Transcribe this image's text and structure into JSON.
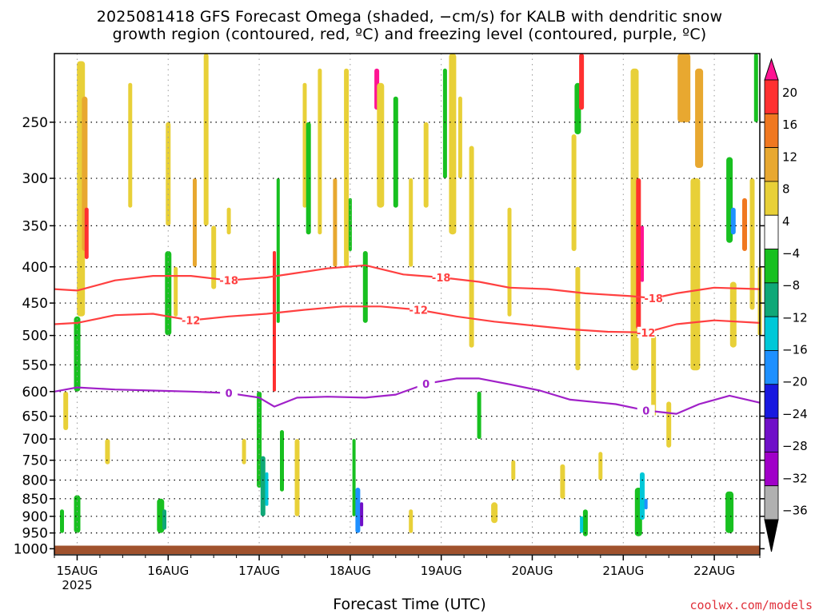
{
  "title_line1": "2025081418 GFS Forecast Omega (shaded, −cm/s) for KALB with dendritic snow",
  "title_line2": "growth region (contoured, red, ºC) and freezing level (contoured, purple, ºC)",
  "credit": "coolwx.com/models",
  "chart_data": {
    "type": "heatmap",
    "xlabel": "Forecast Time (UTC)",
    "x_ticks": [
      "15AUG",
      "16AUG",
      "17AUG",
      "18AUG",
      "19AUG",
      "20AUG",
      "21AUG",
      "22AUG"
    ],
    "x_tick_year": "2025",
    "y_ticks": [
      250,
      300,
      350,
      400,
      450,
      500,
      550,
      600,
      650,
      700,
      750,
      800,
      850,
      900,
      950,
      1000
    ],
    "ylim_hpa": [
      200,
      1020
    ],
    "y_scale": "log-pressure",
    "xlim_hours": [
      -6,
      180
    ],
    "colorbar": {
      "labels": [
        "20",
        "16",
        "12",
        "8",
        "4",
        "−4",
        "−8",
        "−12",
        "−16",
        "−20",
        "−24",
        "−28",
        "−32",
        "−36"
      ],
      "colors": [
        "#ff1493",
        "#ff3030",
        "#f07820",
        "#e8a830",
        "#e8d038",
        "#ffffff",
        "#18c020",
        "#10a878",
        "#00c8d8",
        "#1e90ff",
        "#1818e0",
        "#7010c8",
        "#a000c8",
        "#b0b0b0",
        "#000000"
      ]
    },
    "contours": [
      {
        "label": "-18",
        "color": "#ff4040",
        "points": [
          [
            -6,
            430
          ],
          [
            0,
            432
          ],
          [
            10,
            418
          ],
          [
            20,
            412
          ],
          [
            30,
            412
          ],
          [
            40,
            418
          ],
          [
            50,
            414
          ],
          [
            58,
            408
          ],
          [
            66,
            402
          ],
          [
            76,
            398
          ],
          [
            86,
            410
          ],
          [
            96,
            414
          ],
          [
            106,
            420
          ],
          [
            114,
            428
          ],
          [
            124,
            430
          ],
          [
            134,
            436
          ],
          [
            146,
            440
          ],
          [
            152,
            443
          ],
          [
            158,
            436
          ],
          [
            168,
            428
          ],
          [
            180,
            430
          ]
        ]
      },
      {
        "label": "-12",
        "color": "#ff4040",
        "points": [
          [
            -6,
            482
          ],
          [
            0,
            480
          ],
          [
            10,
            468
          ],
          [
            20,
            466
          ],
          [
            30,
            476
          ],
          [
            40,
            470
          ],
          [
            50,
            466
          ],
          [
            60,
            460
          ],
          [
            70,
            455
          ],
          [
            80,
            455
          ],
          [
            90,
            460
          ],
          [
            100,
            470
          ],
          [
            110,
            478
          ],
          [
            120,
            484
          ],
          [
            130,
            490
          ],
          [
            140,
            494
          ],
          [
            150,
            495
          ],
          [
            158,
            482
          ],
          [
            168,
            476
          ],
          [
            180,
            480
          ]
        ]
      },
      {
        "label": "0",
        "color": "#a020c8",
        "points": [
          [
            -6,
            600
          ],
          [
            0,
            592
          ],
          [
            10,
            596
          ],
          [
            20,
            598
          ],
          [
            30,
            600
          ],
          [
            40,
            603
          ],
          [
            48,
            612
          ],
          [
            52,
            630
          ],
          [
            58,
            612
          ],
          [
            66,
            610
          ],
          [
            76,
            612
          ],
          [
            84,
            606
          ],
          [
            92,
            585
          ],
          [
            100,
            575
          ],
          [
            106,
            575
          ],
          [
            114,
            586
          ],
          [
            122,
            598
          ],
          [
            130,
            616
          ],
          [
            142,
            625
          ],
          [
            150,
            638
          ],
          [
            158,
            645
          ],
          [
            164,
            625
          ],
          [
            172,
            608
          ],
          [
            180,
            622
          ]
        ]
      }
    ]
  }
}
